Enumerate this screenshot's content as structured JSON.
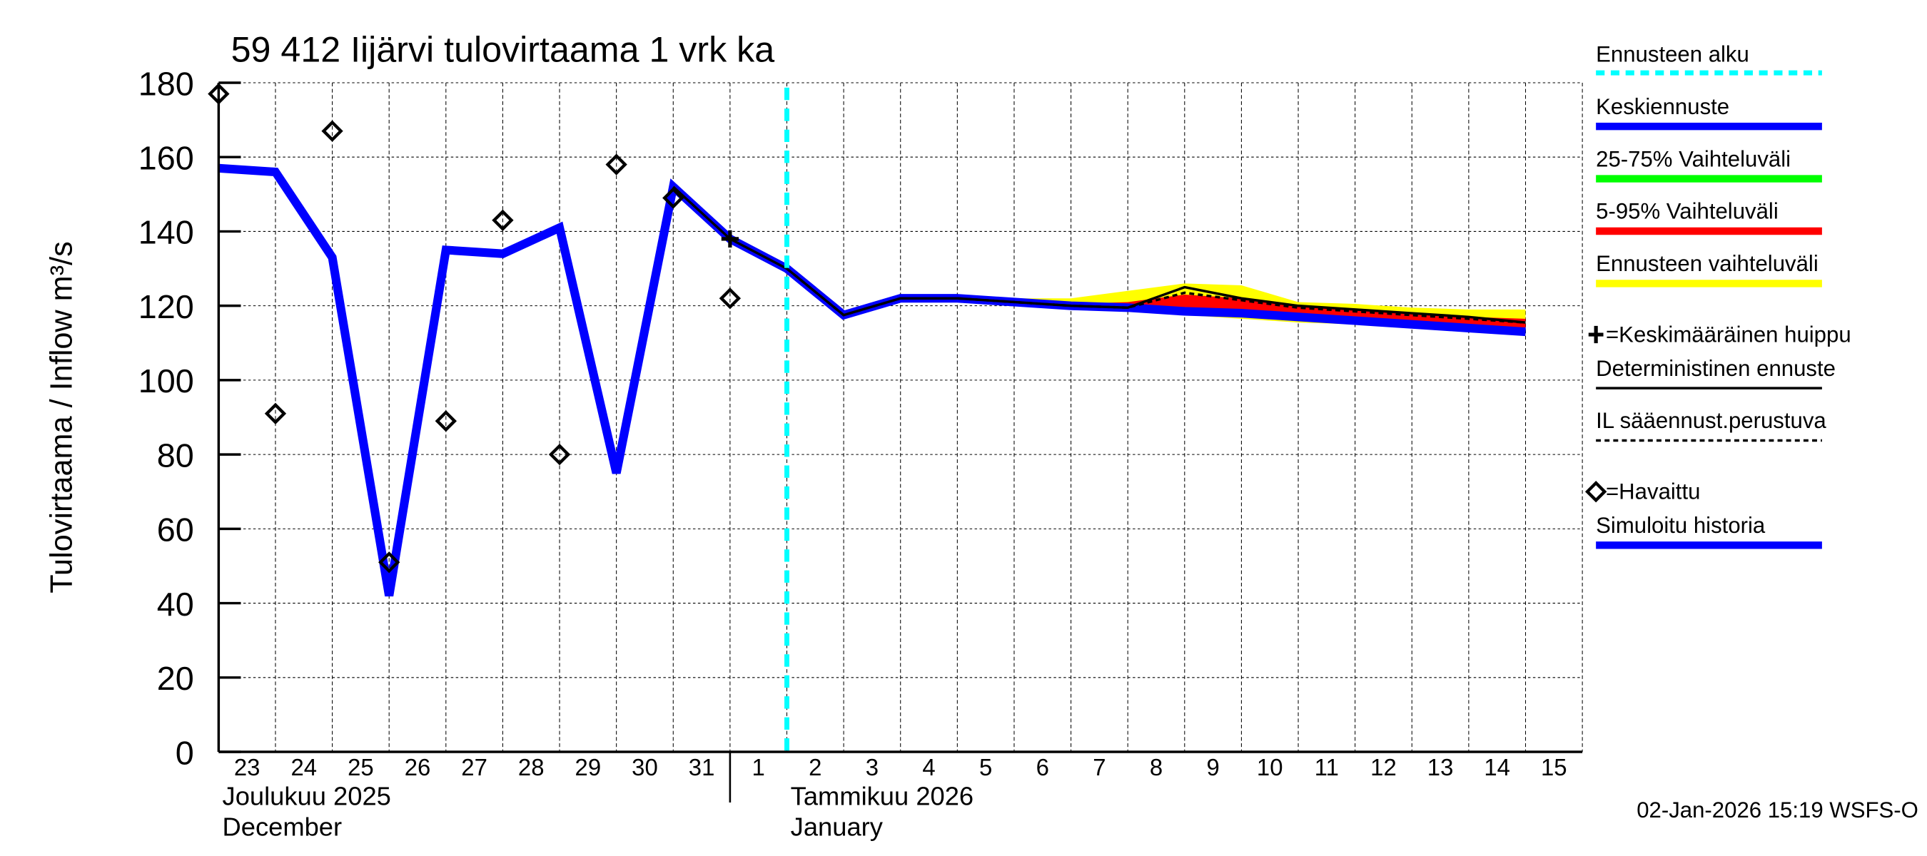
{
  "chart_data": {
    "type": "line",
    "title": "59 412 Iijärvi tulovirtaama 1 vrk ka",
    "ylabel": "Tulovirtaama / Inflow   m³/s",
    "ylim": [
      0,
      180
    ],
    "yticks": [
      0,
      20,
      40,
      60,
      80,
      100,
      120,
      140,
      160,
      180
    ],
    "grid": true,
    "legend_position": "right",
    "x_day_labels": [
      "23",
      "24",
      "25",
      "26",
      "27",
      "28",
      "29",
      "30",
      "31",
      "1",
      "2",
      "3",
      "4",
      "5",
      "6",
      "7",
      "8",
      "9",
      "10",
      "11",
      "12",
      "13",
      "14",
      "15"
    ],
    "month_labels": [
      {
        "fi": "Joulukuu  2025",
        "en": "December",
        "start_day": "23"
      },
      {
        "fi": "Tammikuu  2026",
        "en": "January",
        "start_day": "2"
      }
    ],
    "forecast_start": "2 Jan 2026",
    "series": [
      {
        "name": "Simuloitu historia",
        "color": "#0000ff",
        "values": [
          157,
          156,
          133,
          42,
          135,
          134,
          141,
          75,
          152,
          138,
          130,
          117.5,
          122,
          122,
          121,
          120,
          119.5,
          118.5,
          118,
          117,
          116,
          115,
          114,
          113
        ]
      },
      {
        "name": "Keskiennuste",
        "color": "#0000ff",
        "values": [
          null,
          null,
          null,
          null,
          null,
          null,
          null,
          null,
          null,
          null,
          130,
          117.5,
          122,
          122,
          121,
          120,
          119.5,
          118.5,
          118,
          117,
          116,
          115,
          114,
          113
        ]
      },
      {
        "name": "Deterministinen ennuste",
        "color": "#000000",
        "values": [
          null,
          null,
          null,
          null,
          null,
          null,
          null,
          null,
          152,
          138,
          130,
          117.5,
          122,
          122,
          121,
          120,
          119.5,
          125,
          122,
          120,
          119,
          118,
          117,
          115.5
        ]
      },
      {
        "name": "IL sääennust.perustuva",
        "color": "#000000",
        "dashed": true,
        "values": [
          null,
          null,
          null,
          null,
          null,
          null,
          null,
          null,
          null,
          null,
          130,
          117.5,
          122,
          122,
          121,
          120,
          119.5,
          123.5,
          121.5,
          119.5,
          118.5,
          117.5,
          116.5,
          115.5
        ]
      }
    ],
    "bands": [
      {
        "name": "Ennusteen vaihteluväli",
        "color": "#ffff00",
        "upper": [
          null,
          null,
          null,
          null,
          null,
          null,
          null,
          null,
          null,
          null,
          130,
          118,
          123,
          123,
          122,
          122,
          124,
          126,
          125.5,
          121,
          120.5,
          119.5,
          119,
          119
        ],
        "lower": [
          null,
          null,
          null,
          null,
          null,
          null,
          null,
          null,
          null,
          null,
          130,
          117,
          121.5,
          121.5,
          120.5,
          119.5,
          118.5,
          117.5,
          116.5,
          115.5,
          115,
          114,
          113,
          112
        ]
      },
      {
        "name": "5-95% Vaihteluväli",
        "color": "#ff0000",
        "upper": [
          null,
          null,
          null,
          null,
          null,
          null,
          null,
          null,
          null,
          null,
          130,
          117.8,
          122.5,
          122.5,
          121.5,
          120.5,
          121,
          123,
          122,
          120,
          119,
          118,
          117,
          116.5
        ],
        "lower": [
          null,
          null,
          null,
          null,
          null,
          null,
          null,
          null,
          null,
          null,
          130,
          117.2,
          121.8,
          121.8,
          120.8,
          119.8,
          119,
          118,
          117.5,
          116.5,
          115.5,
          114.5,
          113.5,
          112.5
        ]
      },
      {
        "name": "25-75% Vaihteluväli",
        "color": "#00ff00",
        "upper": [
          null,
          null,
          null,
          null,
          null,
          null,
          null,
          null,
          null,
          null,
          130,
          117.6,
          122.2,
          122.2,
          121.2,
          120.2,
          119.8,
          119.3,
          118.8,
          118,
          117,
          116,
          115,
          114
        ],
        "lower": [
          null,
          null,
          null,
          null,
          null,
          null,
          null,
          null,
          null,
          null,
          130,
          117.4,
          121.9,
          121.9,
          120.9,
          119.9,
          119.3,
          118.5,
          117.8,
          117,
          116,
          115,
          114,
          113
        ]
      }
    ],
    "observed": {
      "name": "=Havaittu",
      "values": [
        177,
        91,
        167,
        51,
        89,
        143,
        80,
        158,
        149,
        122
      ]
    },
    "mean_peak": {
      "name": "=Keskimääräinen huippu",
      "day_index": 9,
      "value": 138
    }
  },
  "legend": [
    {
      "label": "Ennusteen alku",
      "style": "cyan-dash",
      "color": "#00ffff"
    },
    {
      "label": "Keskiennuste",
      "style": "line",
      "color": "#0000ff"
    },
    {
      "label": "25-75% Vaihteluväli",
      "style": "line",
      "color": "#00ff00"
    },
    {
      "label": "5-95% Vaihteluväli",
      "style": "line",
      "color": "#ff0000"
    },
    {
      "label": "Ennusteen vaihteluväli",
      "style": "line",
      "color": "#ffff00"
    },
    {
      "label": "=Keskimääräinen huippu",
      "style": "plus",
      "color": "#000000"
    },
    {
      "label": "Deterministinen ennuste",
      "style": "thin",
      "color": "#000000"
    },
    {
      "label": "IL sääennust.perustuva",
      "style": "dash",
      "color": "#000000"
    },
    {
      "label": "=Havaittu",
      "style": "diamond",
      "color": "#000000"
    },
    {
      "label": "Simuloitu historia",
      "style": "line",
      "color": "#0000ff"
    }
  ],
  "footer": "02-Jan-2026 15:19 WSFS-O"
}
